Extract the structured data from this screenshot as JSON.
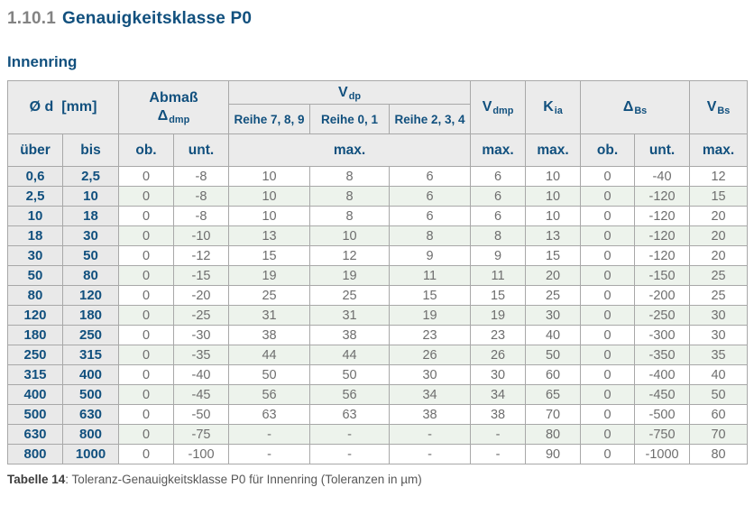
{
  "page": {
    "heading_number": "1.10.1",
    "heading_title": "Genauigkeitsklasse P0",
    "section_title": "Innenring",
    "caption_label": "Tabelle 14",
    "caption_text": ": Toleranz-Genauigkeitsklasse P0 für Innenring (Toleranzen in µm)"
  },
  "colors": {
    "accent_blue": "#11507e",
    "heading_number_gray": "#838383",
    "header_bg": "#ebebeb",
    "row_header_bg": "#e9e9e9",
    "stripe_green": "#edf3ec",
    "data_text_gray": "#6e6e6e",
    "border_gray": "#a8a8a8"
  },
  "table": {
    "header": {
      "diameter": {
        "main": "Ø d",
        "unit": "[mm]"
      },
      "abmass": {
        "line1": "Abmaß",
        "symbol": "Δ",
        "sub": "dmp"
      },
      "vdp": {
        "main": "V",
        "sub": "dp"
      },
      "vdp_series": [
        "Reihe 7, 8, 9",
        "Reihe 0, 1",
        "Reihe 2, 3, 4"
      ],
      "vdmp": {
        "main": "V",
        "sub": "dmp"
      },
      "kia": {
        "main": "K",
        "sub": "ia"
      },
      "dbs": {
        "main": "Δ",
        "sub": "Bs"
      },
      "vbs": {
        "main": "V",
        "sub": "Bs"
      },
      "sub_row": [
        "über",
        "bis",
        "ob.",
        "unt.",
        "max.",
        "max.",
        "max.",
        "ob.",
        "unt.",
        "max."
      ]
    },
    "rows": [
      [
        "0,6",
        "2,5",
        "0",
        "-8",
        "10",
        "8",
        "6",
        "6",
        "10",
        "0",
        "-40",
        "12"
      ],
      [
        "2,5",
        "10",
        "0",
        "-8",
        "10",
        "8",
        "6",
        "6",
        "10",
        "0",
        "-120",
        "15"
      ],
      [
        "10",
        "18",
        "0",
        "-8",
        "10",
        "8",
        "6",
        "6",
        "10",
        "0",
        "-120",
        "20"
      ],
      [
        "18",
        "30",
        "0",
        "-10",
        "13",
        "10",
        "8",
        "8",
        "13",
        "0",
        "-120",
        "20"
      ],
      [
        "30",
        "50",
        "0",
        "-12",
        "15",
        "12",
        "9",
        "9",
        "15",
        "0",
        "-120",
        "20"
      ],
      [
        "50",
        "80",
        "0",
        "-15",
        "19",
        "19",
        "11",
        "11",
        "20",
        "0",
        "-150",
        "25"
      ],
      [
        "80",
        "120",
        "0",
        "-20",
        "25",
        "25",
        "15",
        "15",
        "25",
        "0",
        "-200",
        "25"
      ],
      [
        "120",
        "180",
        "0",
        "-25",
        "31",
        "31",
        "19",
        "19",
        "30",
        "0",
        "-250",
        "30"
      ],
      [
        "180",
        "250",
        "0",
        "-30",
        "38",
        "38",
        "23",
        "23",
        "40",
        "0",
        "-300",
        "30"
      ],
      [
        "250",
        "315",
        "0",
        "-35",
        "44",
        "44",
        "26",
        "26",
        "50",
        "0",
        "-350",
        "35"
      ],
      [
        "315",
        "400",
        "0",
        "-40",
        "50",
        "50",
        "30",
        "30",
        "60",
        "0",
        "-400",
        "40"
      ],
      [
        "400",
        "500",
        "0",
        "-45",
        "56",
        "56",
        "34",
        "34",
        "65",
        "0",
        "-450",
        "50"
      ],
      [
        "500",
        "630",
        "0",
        "-50",
        "63",
        "63",
        "38",
        "38",
        "70",
        "0",
        "-500",
        "60"
      ],
      [
        "630",
        "800",
        "0",
        "-75",
        "-",
        "-",
        "-",
        "-",
        "80",
        "0",
        "-750",
        "70"
      ],
      [
        "800",
        "1000",
        "0",
        "-100",
        "-",
        "-",
        "-",
        "-",
        "90",
        "0",
        "-1000",
        "80"
      ]
    ]
  }
}
